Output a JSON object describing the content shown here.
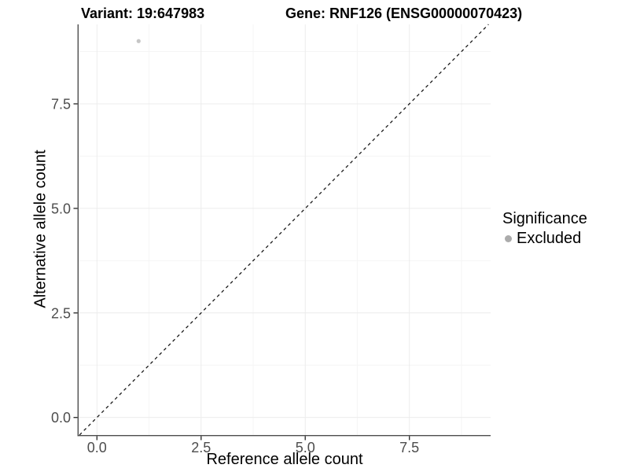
{
  "chart_data": {
    "type": "scatter",
    "title_left": "Variant: 19:647983",
    "title_right": "Gene: RNF126 (ENSG00000070423)",
    "xlabel": "Reference allele count",
    "ylabel": "Alternative allele count",
    "xlim": [
      -0.44,
      9.45
    ],
    "ylim": [
      -0.42,
      9.4
    ],
    "xticks": [
      0,
      2.5,
      5,
      7.5
    ],
    "yticks": [
      0,
      2.5,
      5,
      7.5
    ],
    "xtick_labels": [
      "0.0",
      "2.5",
      "5.0",
      "7.5"
    ],
    "ytick_labels": [
      "0.0",
      "2.5",
      "5.0",
      "7.5"
    ],
    "xminor": [
      1.25,
      3.75,
      6.25,
      8.75
    ],
    "yminor": [
      1.25,
      3.75,
      6.25,
      8.75
    ],
    "grid": "major+minor",
    "legend_position": "right",
    "series": [
      {
        "name": "Excluded",
        "color": "#c6c6c6",
        "points": [
          {
            "x": 1,
            "y": 9
          }
        ]
      }
    ],
    "reference_line": {
      "label": "identity",
      "slope": 1,
      "intercept": 0,
      "style": "dashed",
      "color": "#1a1a1a"
    },
    "legend": {
      "title": "Significance",
      "items": [
        {
          "label": "Excluded",
          "color": "#ababab"
        }
      ]
    }
  },
  "colors": {
    "background": "#ffffff",
    "grid_major": "#ececec",
    "grid_minor": "#f5f5f5",
    "axis_line": "#4d4d4d",
    "tick_mark": "#333333",
    "tick_label": "#4d4d4d",
    "title_text": "#000000"
  }
}
